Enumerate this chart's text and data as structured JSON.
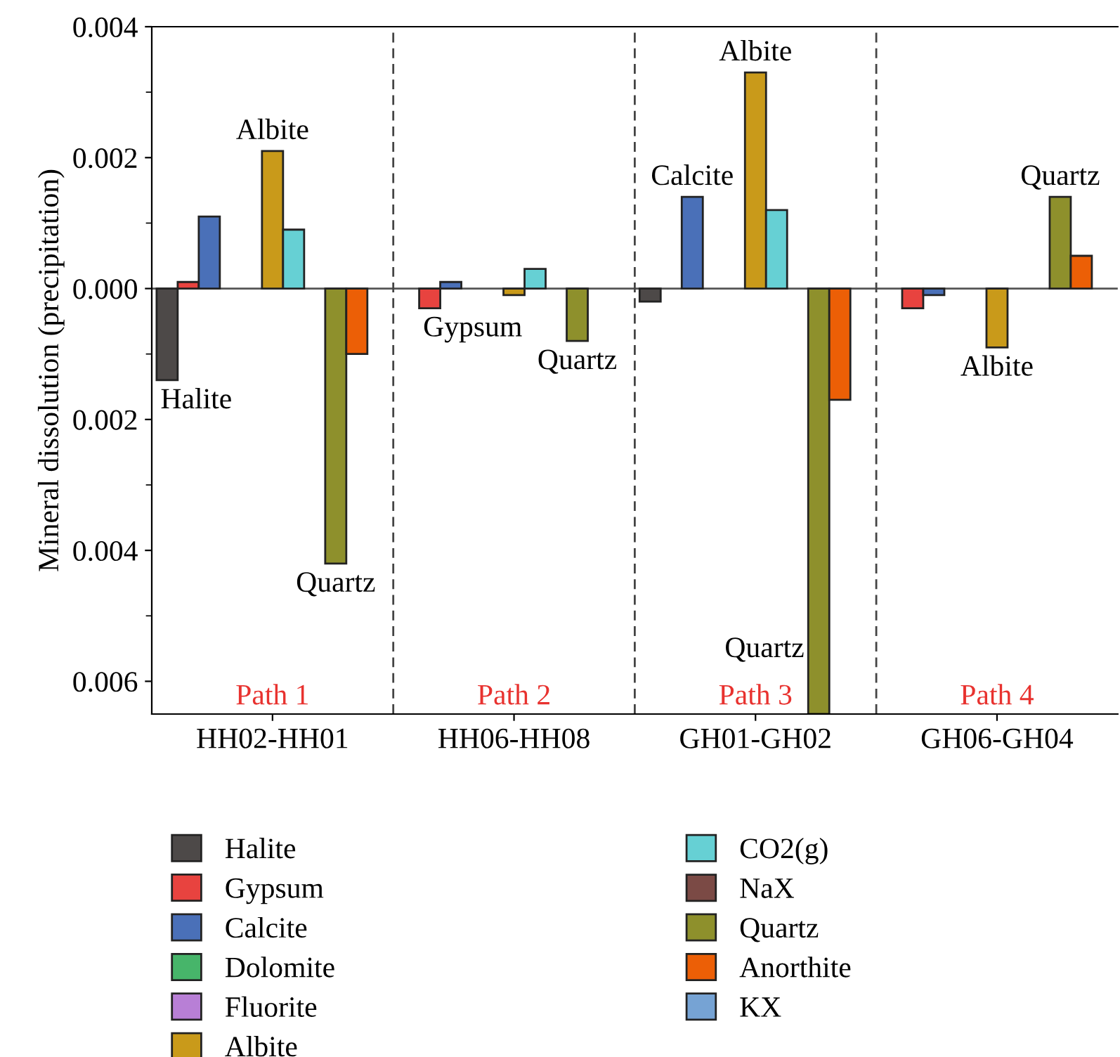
{
  "chart_data": {
    "type": "bar",
    "ylabel": "Mineral dissolution (precipitation)",
    "categories": [
      "HH02-HH01",
      "HH06-HH08",
      "GH01-GH02",
      "GH06-GH04"
    ],
    "series": [
      {
        "name": "Halite",
        "color": "#4d4948",
        "values": [
          -0.0014,
          0,
          -0.0002,
          0
        ]
      },
      {
        "name": "Gypsum",
        "color": "#e8433f",
        "values": [
          0.0001,
          -0.0003,
          0,
          -0.0003
        ]
      },
      {
        "name": "Calcite",
        "color": "#4a70b8",
        "values": [
          0.0011,
          0.0001,
          0.0014,
          -0.0001
        ]
      },
      {
        "name": "Dolomite",
        "color": "#47b56a",
        "values": [
          0,
          0,
          0,
          0
        ]
      },
      {
        "name": "Fluorite",
        "color": "#b87fd6",
        "values": [
          0,
          0,
          0,
          0
        ]
      },
      {
        "name": "Albite",
        "color": "#c99a1a",
        "values": [
          0.0021,
          -0.0001,
          0.0033,
          -0.0009
        ]
      },
      {
        "name": "CO2(g)",
        "color": "#66d0d4",
        "values": [
          0.0009,
          0.0003,
          0.0012,
          0
        ]
      },
      {
        "name": "NaX",
        "color": "#7b4a45",
        "values": [
          0,
          0,
          0,
          0
        ]
      },
      {
        "name": "Quartz",
        "color": "#8e902c",
        "values": [
          -0.0042,
          -0.0008,
          -0.0065,
          0.0014
        ]
      },
      {
        "name": "Anorthite",
        "color": "#ec5f06",
        "values": [
          -0.001,
          0,
          -0.0017,
          0.0005
        ]
      },
      {
        "name": "KX",
        "color": "#76a3d4",
        "values": [
          0,
          0,
          0,
          0
        ]
      }
    ],
    "ylim": [
      -0.0065,
      0.004
    ],
    "yticks": [
      {
        "value": -0.006,
        "label": "0.006"
      },
      {
        "value": -0.005,
        "label": null
      },
      {
        "value": -0.004,
        "label": "0.004"
      },
      {
        "value": -0.003,
        "label": null
      },
      {
        "value": -0.002,
        "label": "0.002"
      },
      {
        "value": -0.001,
        "label": null
      },
      {
        "value": 0,
        "label": "0.000"
      },
      {
        "value": 0.001,
        "label": null
      },
      {
        "value": 0.002,
        "label": "0.002"
      },
      {
        "value": 0.003,
        "label": null
      },
      {
        "value": 0.004,
        "label": "0.004"
      }
    ],
    "annotations": [
      "Halite",
      "Albite",
      "Quartz",
      "Gypsum",
      "Quartz",
      "Calcite",
      "Albite",
      "Quartz",
      "Albite",
      "Quartz",
      "Path 1",
      "Path 2",
      "Path 3",
      "Path 4"
    ],
    "grid": false,
    "legend": "bottom"
  }
}
